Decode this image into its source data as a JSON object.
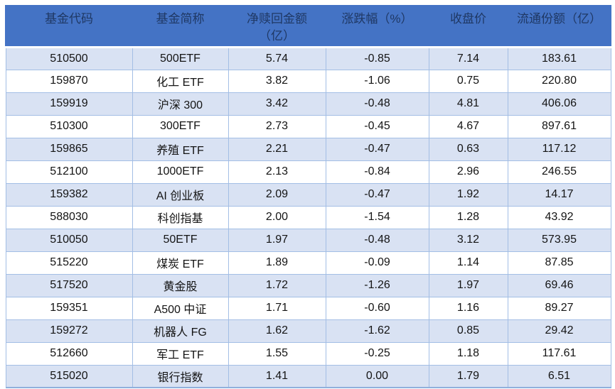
{
  "table": {
    "columns": [
      {
        "id": "fund-code",
        "lines": [
          "基金代码"
        ]
      },
      {
        "id": "fund-name",
        "lines": [
          "基金简称"
        ]
      },
      {
        "id": "net-redemption",
        "lines": [
          "净赎回金额",
          "（亿）"
        ]
      },
      {
        "id": "change-pct",
        "lines": [
          "涨跌幅（%）"
        ]
      },
      {
        "id": "close-price",
        "lines": [
          "收盘价"
        ]
      },
      {
        "id": "float-shares",
        "lines": [
          "流通份额（亿）"
        ]
      }
    ],
    "rows": [
      [
        "510500",
        "500ETF",
        "5.74",
        "-0.85",
        "7.14",
        "183.61"
      ],
      [
        "159870",
        "化工 ETF",
        "3.82",
        "-1.06",
        "0.75",
        "220.80"
      ],
      [
        "159919",
        "沪深 300",
        "3.42",
        "-0.48",
        "4.81",
        "406.06"
      ],
      [
        "510300",
        "300ETF",
        "2.73",
        "-0.45",
        "4.67",
        "897.61"
      ],
      [
        "159865",
        "养殖 ETF",
        "2.21",
        "-0.47",
        "0.63",
        "117.12"
      ],
      [
        "512100",
        "1000ETF",
        "2.13",
        "-0.84",
        "2.96",
        "246.55"
      ],
      [
        "159382",
        "AI 创业板",
        "2.09",
        "-0.47",
        "1.92",
        "14.17"
      ],
      [
        "588030",
        "科创指基",
        "2.00",
        "-1.54",
        "1.28",
        "43.92"
      ],
      [
        "510050",
        "50ETF",
        "1.97",
        "-0.48",
        "3.12",
        "573.95"
      ],
      [
        "515220",
        "煤炭 ETF",
        "1.89",
        "-0.09",
        "1.14",
        "87.85"
      ],
      [
        "517520",
        "黄金股",
        "1.72",
        "-1.26",
        "1.97",
        "69.46"
      ],
      [
        "159351",
        "A500 中证",
        "1.71",
        "-0.60",
        "1.16",
        "89.27"
      ],
      [
        "159272",
        "机器人 FG",
        "1.62",
        "-1.62",
        "0.85",
        "29.42"
      ],
      [
        "512660",
        "军工 ETF",
        "1.55",
        "-0.25",
        "1.18",
        "117.61"
      ],
      [
        "515020",
        "银行指数",
        "1.41",
        "0.00",
        "1.79",
        "6.51"
      ]
    ],
    "colors": {
      "header_bg": "#4473C5",
      "header_text": "#1F3864",
      "band_bg": "#D9E2F3",
      "cell_border": "#A3BEE5",
      "bottom_border": "#8FB0DC",
      "body_text": "#141414"
    }
  }
}
